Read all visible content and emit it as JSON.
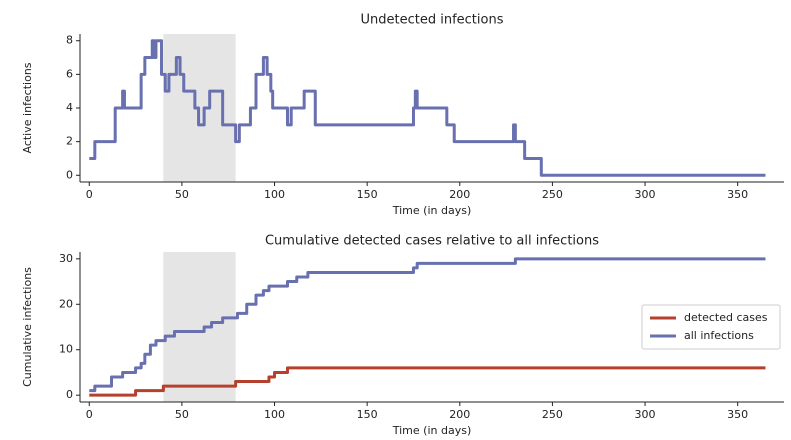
{
  "chart_data": [
    {
      "type": "line",
      "title": "Undetected infections",
      "xlabel": "Time (in days)",
      "ylabel": "Active infections",
      "xlim": [
        -5,
        375
      ],
      "ylim": [
        -0.4,
        8.4
      ],
      "xticks": [
        0,
        50,
        100,
        150,
        200,
        250,
        300,
        350
      ],
      "yticks": [
        0,
        2,
        4,
        6,
        8
      ],
      "shaded_region": [
        40,
        79
      ],
      "shade_color": "#e5e5e5",
      "series": [
        {
          "color": "#6870b0",
          "x": [
            0,
            3,
            3,
            14,
            14,
            18,
            18,
            19,
            19,
            28,
            28,
            30,
            30,
            34,
            34,
            35,
            35,
            36,
            36,
            39,
            39,
            41,
            41,
            43,
            43,
            47,
            47,
            49,
            49,
            51,
            51,
            57,
            57,
            59,
            59,
            62,
            62,
            65,
            65,
            72,
            72,
            79,
            79,
            81,
            81,
            87,
            87,
            90,
            90,
            94,
            94,
            96,
            96,
            98,
            98,
            99,
            99,
            107,
            107,
            109,
            109,
            116,
            116,
            122,
            122,
            175,
            175,
            176,
            176,
            177,
            177,
            193,
            193,
            197,
            197,
            229,
            229,
            230,
            230,
            235,
            235,
            244,
            244,
            365
          ],
          "values": [
            1,
            1,
            2,
            2,
            4,
            4,
            5,
            5,
            4,
            4,
            6,
            6,
            7,
            7,
            8,
            8,
            7,
            7,
            8,
            8,
            6,
            6,
            5,
            5,
            6,
            6,
            7,
            7,
            6,
            6,
            5,
            5,
            4,
            4,
            3,
            3,
            4,
            4,
            5,
            5,
            3,
            3,
            2,
            2,
            3,
            3,
            4,
            4,
            6,
            6,
            7,
            7,
            6,
            6,
            5,
            5,
            4,
            4,
            3,
            3,
            4,
            4,
            5,
            5,
            3,
            3,
            4,
            4,
            5,
            5,
            4,
            4,
            3,
            3,
            2,
            2,
            3,
            3,
            2,
            2,
            1,
            1,
            0,
            0
          ]
        }
      ]
    },
    {
      "type": "line",
      "title": "Cumulative detected cases relative to all infections",
      "xlabel": "Time (in days)",
      "ylabel": "Cumulative infections",
      "xlim": [
        -5,
        375
      ],
      "ylim": [
        -1.5,
        31.5
      ],
      "xticks": [
        0,
        50,
        100,
        150,
        200,
        250,
        300,
        350
      ],
      "yticks": [
        0,
        10,
        20,
        30
      ],
      "shaded_region": [
        40,
        79
      ],
      "shade_color": "#e5e5e5",
      "legend": "center right",
      "series": [
        {
          "name": "detected cases",
          "color": "#b5402e",
          "x": [
            0,
            25,
            25,
            40,
            40,
            79,
            79,
            97,
            97,
            100,
            100,
            107,
            107,
            365
          ],
          "values": [
            0,
            0,
            1,
            1,
            2,
            2,
            3,
            3,
            4,
            4,
            5,
            5,
            6,
            6
          ]
        },
        {
          "name": "all infections",
          "color": "#6870b0",
          "x": [
            0,
            3,
            3,
            12,
            12,
            18,
            18,
            25,
            25,
            28,
            28,
            30,
            30,
            33,
            33,
            36,
            36,
            41,
            41,
            46,
            46,
            62,
            62,
            66,
            66,
            72,
            72,
            80,
            80,
            85,
            85,
            90,
            90,
            94,
            94,
            97,
            97,
            107,
            107,
            112,
            112,
            118,
            118,
            175,
            175,
            177,
            177,
            230,
            230,
            365
          ],
          "values": [
            1,
            1,
            2,
            2,
            4,
            4,
            5,
            5,
            6,
            6,
            7,
            7,
            9,
            9,
            11,
            11,
            12,
            12,
            13,
            13,
            14,
            14,
            15,
            15,
            16,
            16,
            17,
            17,
            18,
            18,
            20,
            20,
            22,
            22,
            23,
            23,
            24,
            24,
            25,
            25,
            26,
            26,
            27,
            27,
            28,
            28,
            29,
            29,
            30,
            30
          ]
        }
      ]
    }
  ]
}
